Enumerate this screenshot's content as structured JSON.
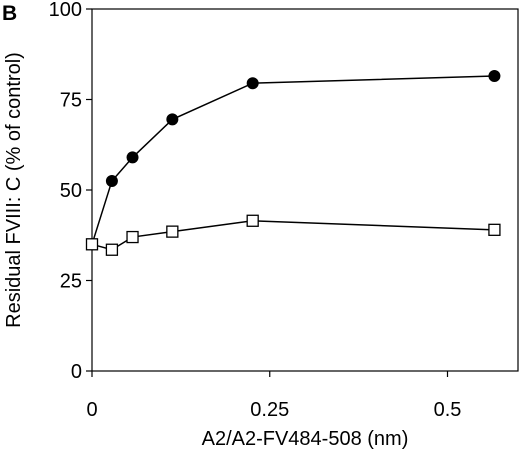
{
  "chart_data": {
    "type": "line",
    "panel_label": "B",
    "title": "",
    "xlabel": "A2/A2-FV484-508 (nm)",
    "ylabel": "Residual FVIII: C (% of control)",
    "xlim": [
      0,
      0.6
    ],
    "ylim": [
      0,
      100
    ],
    "x_ticks": [
      0,
      0.25,
      0.5
    ],
    "x_tick_labels": [
      "0",
      "0.25",
      "0.5"
    ],
    "y_ticks": [
      0,
      25,
      50,
      75,
      100
    ],
    "y_tick_labels": [
      "0",
      "25",
      "50",
      "75",
      "100"
    ],
    "grid": false,
    "series": [
      {
        "marker": "filled-circle",
        "color": "#000000",
        "x": [
          0,
          0.028,
          0.057,
          0.113,
          0.226,
          0.566
        ],
        "y": [
          35,
          52.5,
          59,
          69.5,
          79.5,
          81.5
        ]
      },
      {
        "marker": "open-square",
        "color": "#000000",
        "x": [
          0,
          0.028,
          0.057,
          0.113,
          0.226,
          0.566
        ],
        "y": [
          35,
          33.5,
          37,
          38.5,
          41.5,
          39
        ]
      }
    ]
  }
}
